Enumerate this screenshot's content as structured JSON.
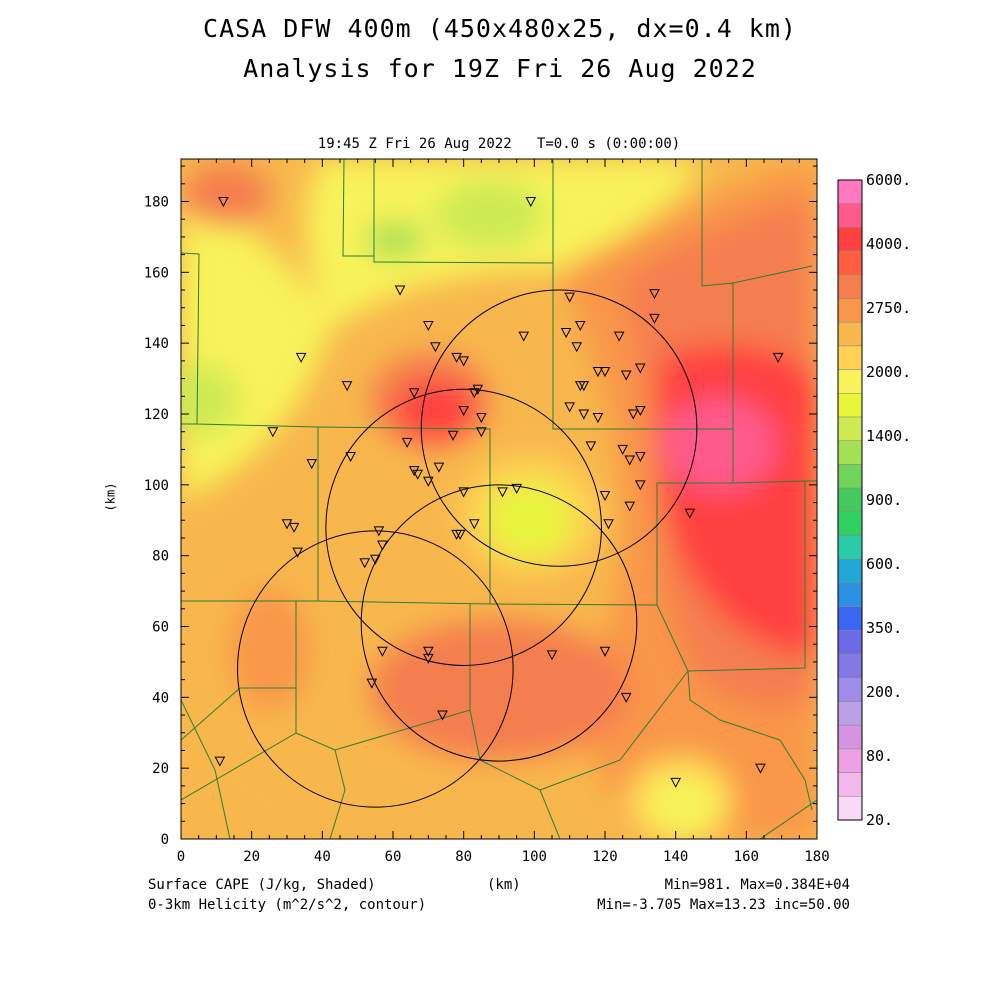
{
  "title_line1": "CASA DFW 400m (450x480x25, dx=0.4 km)",
  "title_line2": "Analysis for 19Z Fri 26 Aug 2022",
  "subtitle": "19:45 Z Fri 26 Aug 2022   T=0.0 s (0:00:00)",
  "axes": {
    "x_unit_label": "(km)",
    "y_unit_label": "(km)",
    "x_ticks": [
      "0",
      "20",
      "40",
      "60",
      "80",
      "100",
      "120",
      "140",
      "160",
      "180"
    ],
    "y_ticks": [
      "0",
      "20",
      "40",
      "60",
      "80",
      "100",
      "120",
      "140",
      "160",
      "180"
    ],
    "x_range": [
      0,
      180
    ],
    "y_range": [
      0,
      192
    ]
  },
  "colorbar": {
    "labels": [
      "6000.",
      "4000.",
      "2750.",
      "2000.",
      "1400.",
      "900.",
      "600.",
      "350.",
      "200.",
      "80.",
      "20."
    ],
    "colors": [
      "#ff78c0",
      "#ff5a8c",
      "#ff4040",
      "#ff5f40",
      "#f57e4f",
      "#f9964a",
      "#f8b74c",
      "#ffd254",
      "#f8f35a",
      "#e8f53c",
      "#cdea52",
      "#a4e055",
      "#70d35a",
      "#46c85e",
      "#2fd060",
      "#2acba8",
      "#22a6d5",
      "#2b8fe2",
      "#3a67f0",
      "#6c6ae6",
      "#8378e4",
      "#a08be8",
      "#bd9fe6",
      "#d494e2",
      "#eea0e4",
      "#f2b8ec",
      "#fad8f6"
    ]
  },
  "footer": {
    "left1": "Surface CAPE (J/kg, Shaded)",
    "left2": "0-3km Helicity (m^2/s^2, contour)",
    "center": "(km)",
    "right1": "Min=981. Max=0.384E+04",
    "right2": "Min=-3.705 Max=13.23 inc=50.00"
  },
  "radar_circles_km": [
    {
      "cx": 107,
      "cy": 116,
      "r": 39
    },
    {
      "cx": 80,
      "cy": 88,
      "r": 39
    },
    {
      "cx": 90,
      "cy": 61,
      "r": 39
    },
    {
      "cx": 55,
      "cy": 48,
      "r": 39
    }
  ],
  "stations_km": [
    [
      12,
      180
    ],
    [
      99,
      180
    ],
    [
      62,
      155
    ],
    [
      110,
      153
    ],
    [
      134,
      154
    ],
    [
      134,
      147
    ],
    [
      70,
      145
    ],
    [
      113,
      145
    ],
    [
      109,
      143
    ],
    [
      97,
      142
    ],
    [
      124,
      142
    ],
    [
      112,
      139
    ],
    [
      72,
      139
    ],
    [
      78,
      136
    ],
    [
      80,
      135
    ],
    [
      34,
      136
    ],
    [
      169,
      136
    ],
    [
      130,
      133
    ],
    [
      126,
      131
    ],
    [
      118,
      132
    ],
    [
      120,
      132
    ],
    [
      47,
      128
    ],
    [
      113,
      128
    ],
    [
      114,
      128
    ],
    [
      84,
      127
    ],
    [
      83,
      126
    ],
    [
      66,
      126
    ],
    [
      110,
      122
    ],
    [
      80,
      121
    ],
    [
      114,
      120
    ],
    [
      118,
      119
    ],
    [
      85,
      119
    ],
    [
      130,
      121
    ],
    [
      128,
      120
    ],
    [
      85,
      115
    ],
    [
      77,
      114
    ],
    [
      26,
      115
    ],
    [
      64,
      112
    ],
    [
      116,
      111
    ],
    [
      125,
      110
    ],
    [
      130,
      108
    ],
    [
      127,
      107
    ],
    [
      73,
      105
    ],
    [
      66,
      104
    ],
    [
      67,
      103
    ],
    [
      70,
      101
    ],
    [
      37,
      106
    ],
    [
      48,
      108
    ],
    [
      130,
      100
    ],
    [
      120,
      97
    ],
    [
      80,
      98
    ],
    [
      91,
      98
    ],
    [
      95,
      99
    ],
    [
      127,
      94
    ],
    [
      144,
      92
    ],
    [
      121,
      89
    ],
    [
      30,
      89
    ],
    [
      32,
      88
    ],
    [
      83,
      89
    ],
    [
      78,
      86
    ],
    [
      79,
      86
    ],
    [
      56,
      87
    ],
    [
      57,
      83
    ],
    [
      33,
      81
    ],
    [
      55,
      79
    ],
    [
      52,
      78
    ],
    [
      57,
      53
    ],
    [
      70,
      53
    ],
    [
      120,
      53
    ],
    [
      70,
      51
    ],
    [
      105,
      52
    ],
    [
      54,
      44
    ],
    [
      126,
      40
    ],
    [
      74,
      35
    ],
    [
      140,
      16
    ],
    [
      164,
      20
    ],
    [
      11,
      22
    ]
  ]
}
